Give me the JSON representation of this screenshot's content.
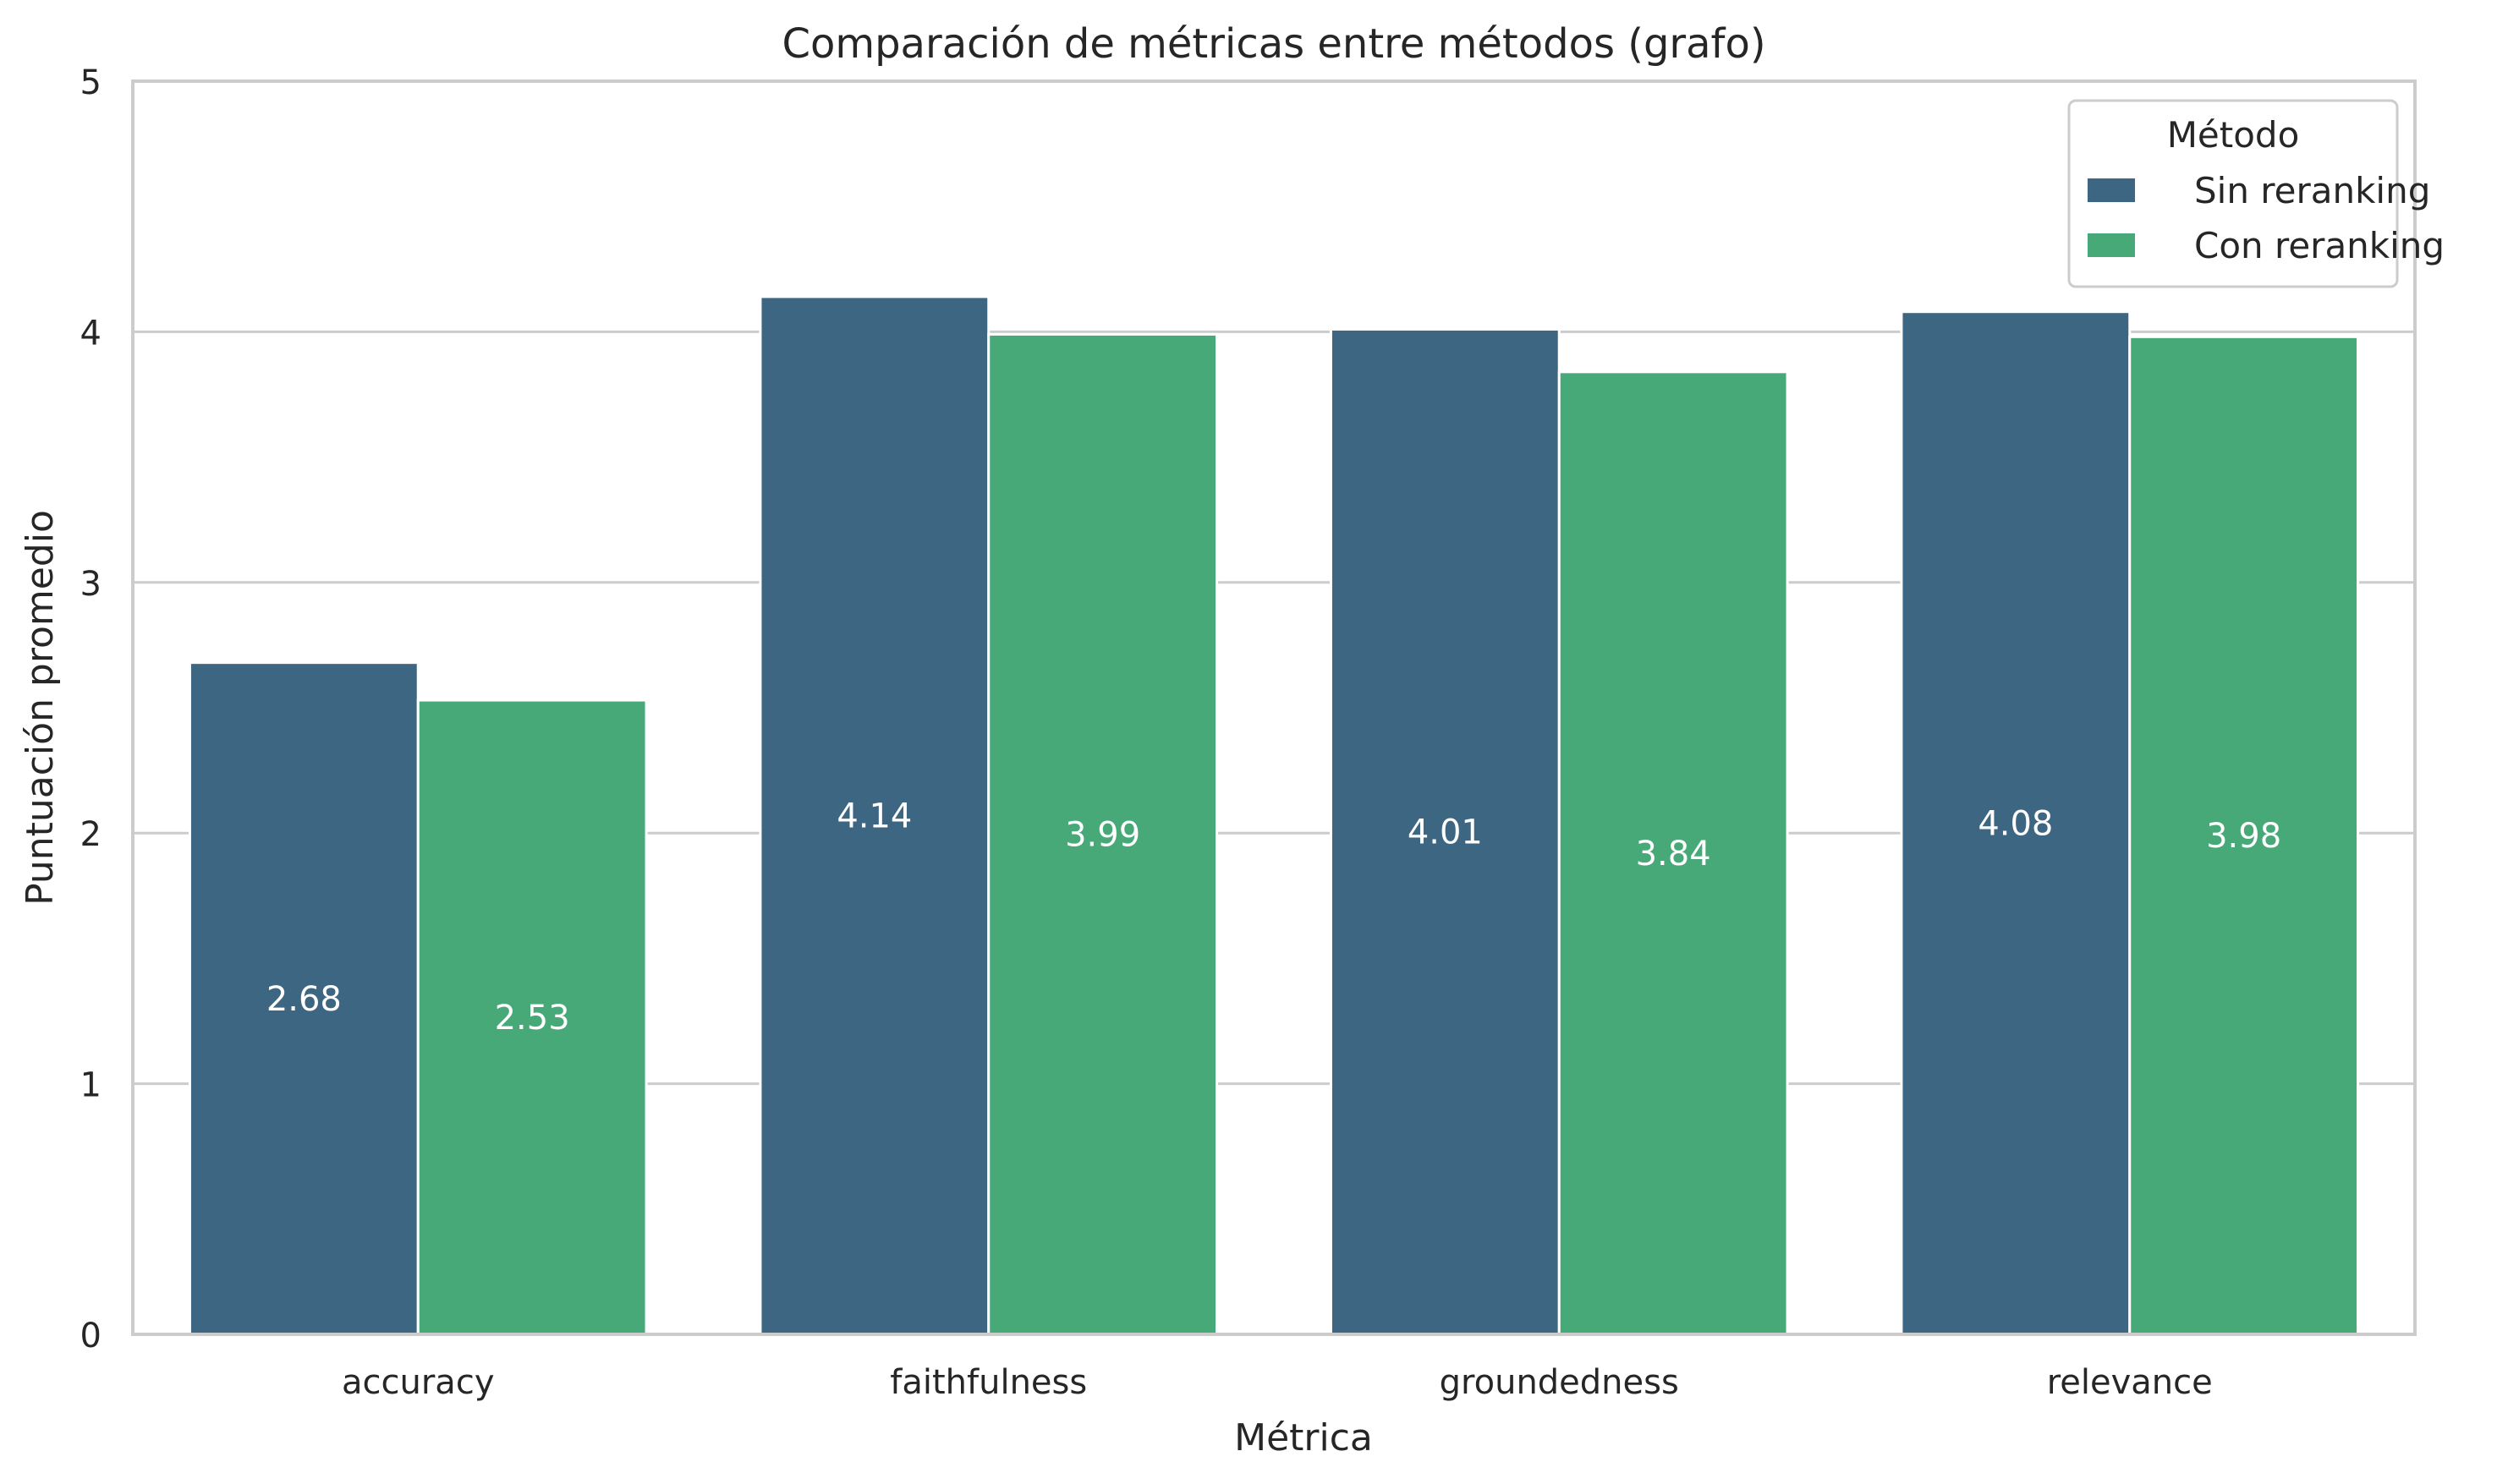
{
  "chart_data": {
    "type": "bar",
    "title": "Comparación de métricas entre métodos (grafo)",
    "xlabel": "Métrica",
    "ylabel": "Puntuación promedio",
    "categories": [
      "accuracy",
      "faithfulness",
      "groundedness",
      "relevance"
    ],
    "series": [
      {
        "name": "Sin reranking",
        "values": [
          2.68,
          4.14,
          4.01,
          4.08
        ],
        "color": "#3d6682"
      },
      {
        "name": "Con reranking",
        "values": [
          2.53,
          3.99,
          3.84,
          3.98
        ],
        "color": "#47a978"
      }
    ],
    "ylim": [
      0,
      5
    ],
    "yticks": [
      "0",
      "1",
      "2",
      "3",
      "4",
      "5"
    ],
    "grid": true,
    "legend": {
      "title": "Método",
      "placement": "top-right"
    }
  }
}
